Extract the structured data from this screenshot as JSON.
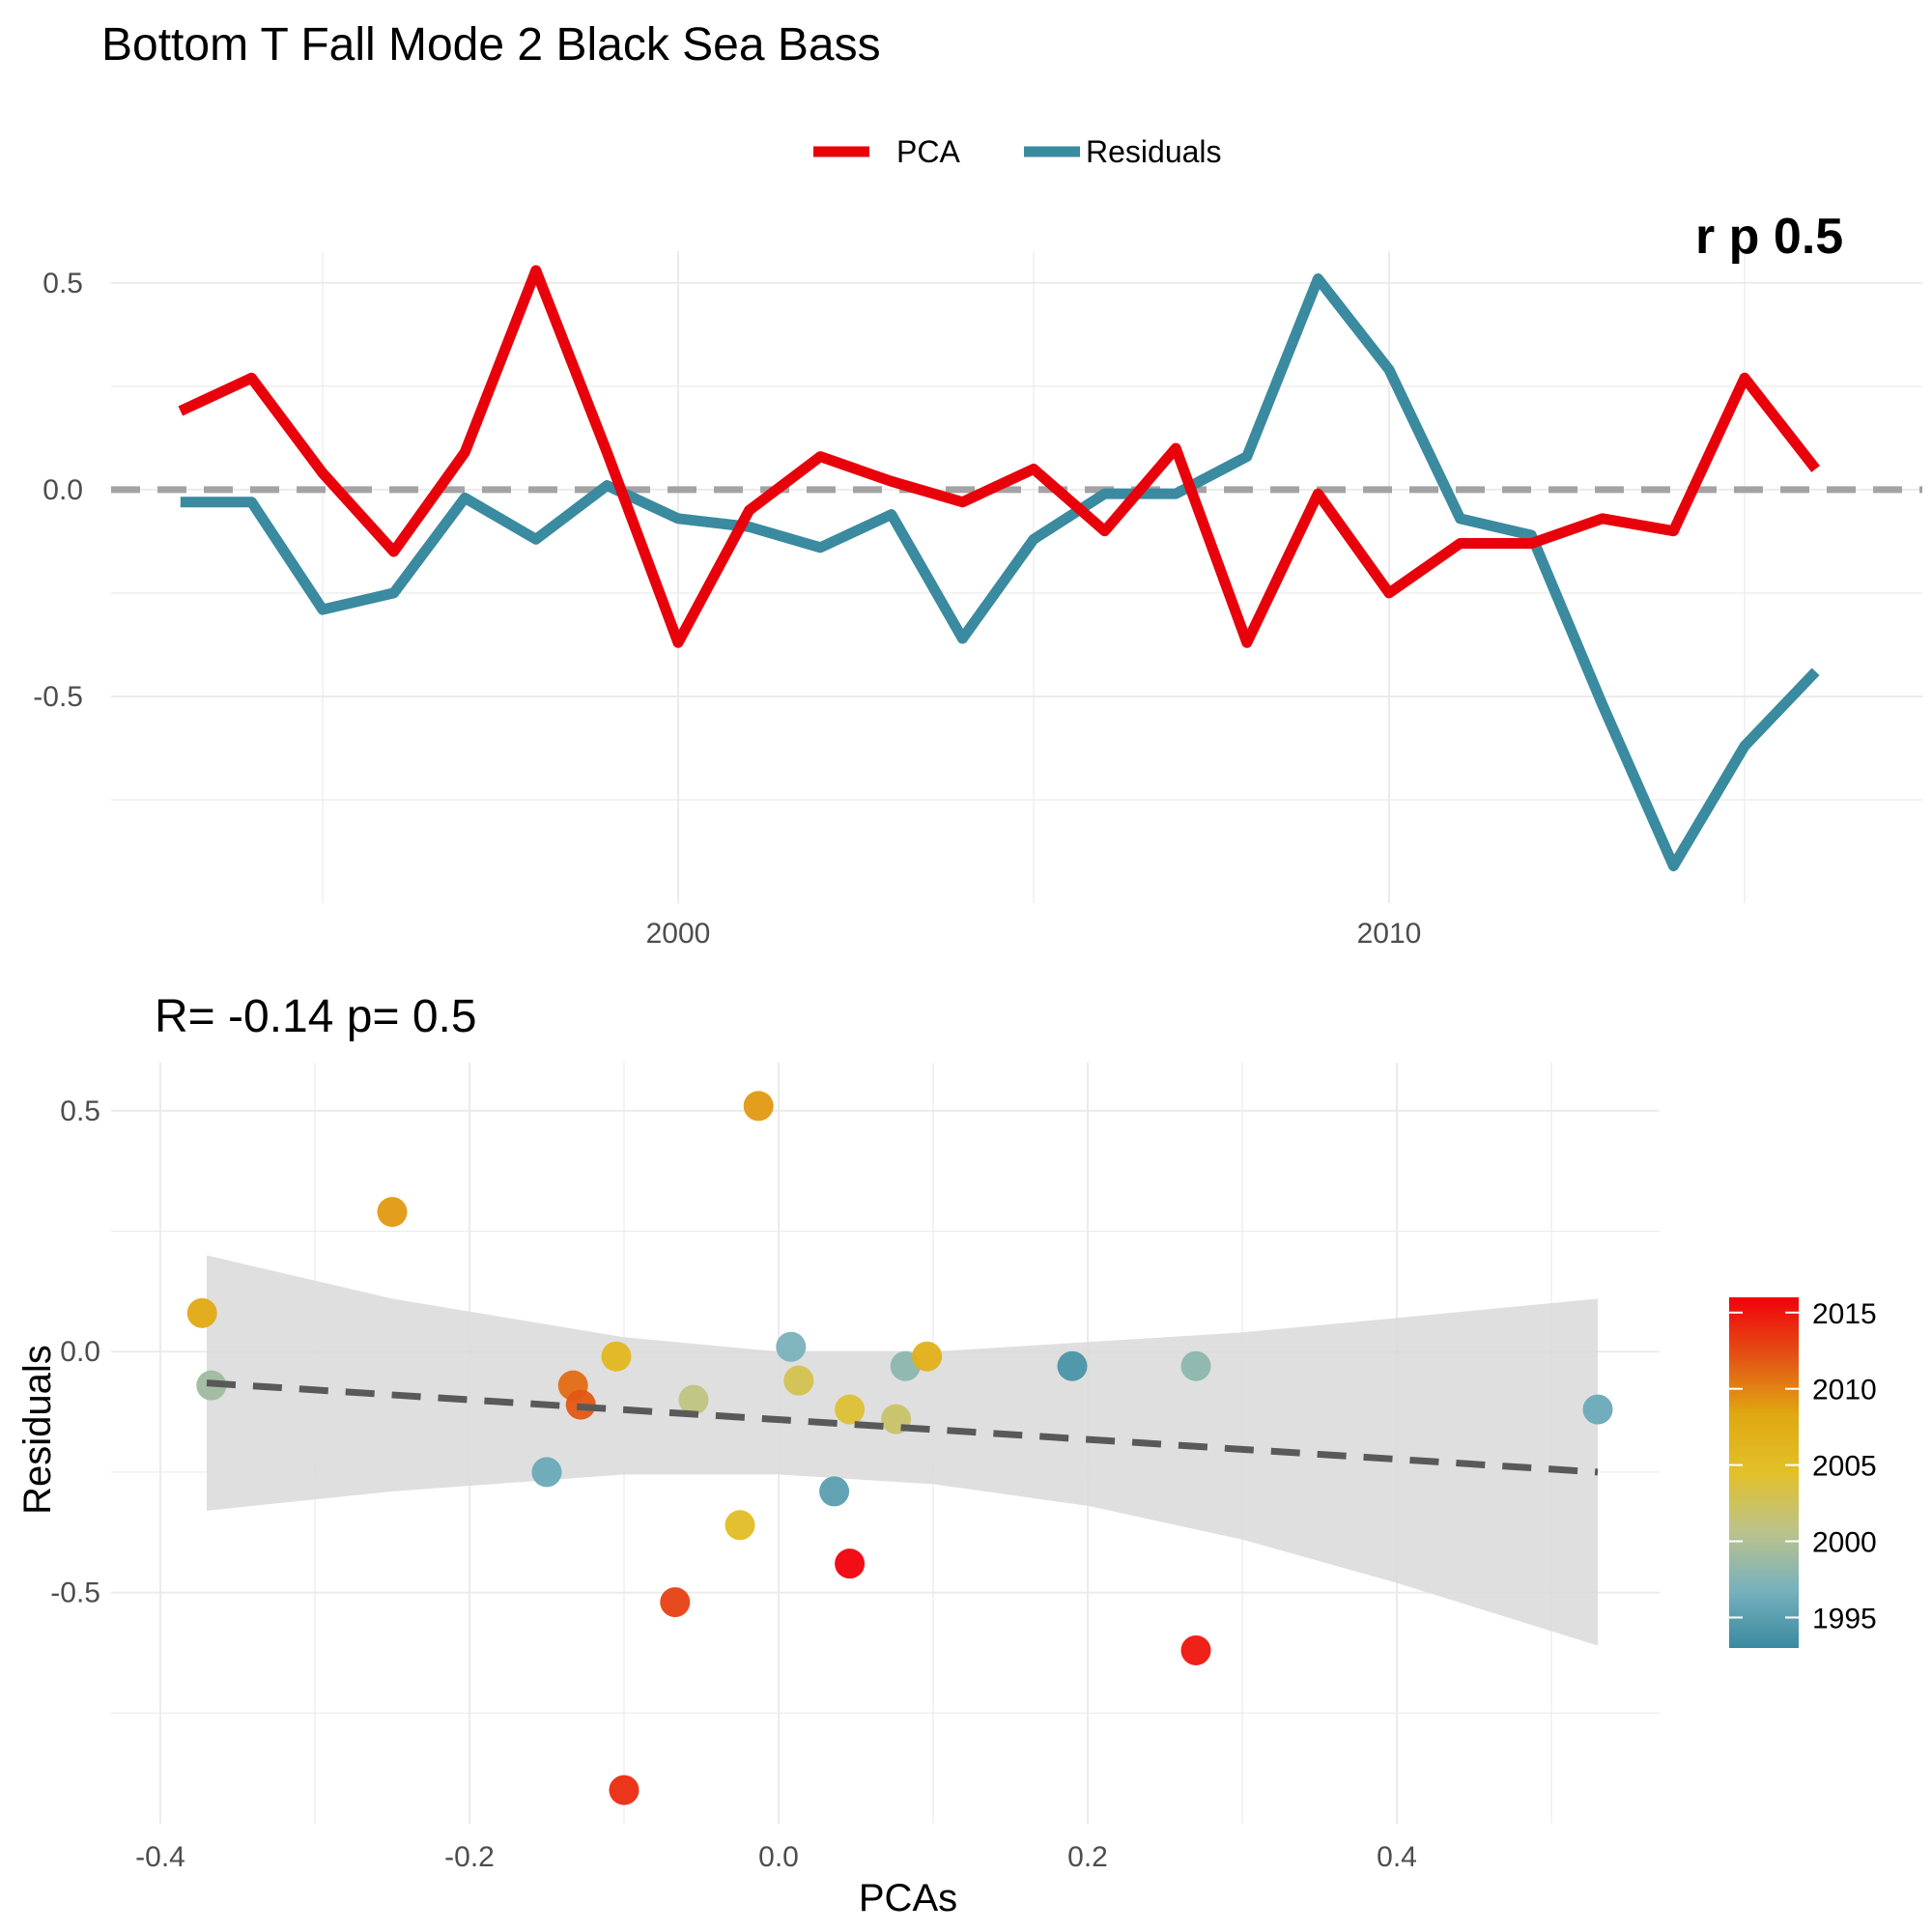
{
  "title": "Bottom T Fall Mode 2 Black Sea Bass",
  "colors": {
    "pca": "#e8000b",
    "residuals": "#3a8aa0",
    "zero_line": "#a3a3a3",
    "fit_line": "#595959",
    "ribbon": "#d9d9d9"
  },
  "chart_data": [
    {
      "type": "line",
      "legend": {
        "position": "top",
        "entries": [
          "PCA",
          "Residuals"
        ]
      },
      "xticks": [
        2000,
        2010
      ],
      "yticks": [
        -0.5,
        0.0,
        0.5
      ],
      "ytick_labels": [
        "-0.5",
        "0.0",
        "0.5"
      ],
      "xlim": [
        1992.5,
        2017.5
      ],
      "ylim": [
        -1.0,
        0.6
      ],
      "hline": 0,
      "x": [
        1993,
        1994,
        1995,
        1996,
        1997,
        1998,
        1999,
        2000,
        2001,
        2002,
        2003,
        2004,
        2005,
        2006,
        2007,
        2008,
        2009,
        2010,
        2011,
        2012,
        2013,
        2014,
        2015,
        2016
      ],
      "series": [
        {
          "name": "PCA",
          "values": [
            0.19,
            0.27,
            0.04,
            -0.15,
            0.09,
            0.53,
            0.09,
            -0.37,
            -0.05,
            0.08,
            0.02,
            -0.03,
            0.05,
            -0.1,
            0.1,
            -0.37,
            -0.01,
            -0.25,
            -0.13,
            -0.13,
            -0.07,
            -0.1,
            0.27,
            0.05
          ]
        },
        {
          "name": "Residuals",
          "values": [
            -0.03,
            -0.03,
            -0.29,
            -0.25,
            -0.02,
            -0.12,
            0.01,
            -0.07,
            -0.09,
            -0.14,
            -0.06,
            -0.36,
            -0.12,
            -0.01,
            -0.01,
            0.08,
            0.51,
            0.29,
            -0.07,
            -0.11,
            -0.52,
            -0.91,
            -0.62,
            -0.44
          ]
        }
      ],
      "clipped_label": "r p 0.5"
    },
    {
      "type": "scatter",
      "subtitle": "R= -0.14  p= 0.5",
      "xlabel": "PCAs",
      "ylabel": "Residuals",
      "xticks": [
        -0.4,
        -0.2,
        0.0,
        0.2,
        0.4
      ],
      "xtick_labels": [
        "-0.4",
        "-0.2",
        "0.0",
        "0.2",
        "0.4"
      ],
      "yticks": [
        -0.5,
        0.0,
        0.5
      ],
      "ytick_labels": [
        "-0.5",
        "0.0",
        "0.5"
      ],
      "xlim": [
        -0.41,
        0.57
      ],
      "ylim": [
        -0.98,
        0.6
      ],
      "fit": {
        "x": [
          -0.37,
          0.53
        ],
        "y": [
          -0.065,
          -0.25
        ]
      },
      "ribbon": {
        "x": [
          -0.37,
          -0.25,
          -0.1,
          0.0,
          0.1,
          0.2,
          0.3,
          0.4,
          0.53
        ],
        "upper": [
          0.2,
          0.11,
          0.03,
          0.0,
          0.0,
          0.02,
          0.04,
          0.07,
          0.11
        ],
        "lower": [
          -0.33,
          -0.29,
          -0.255,
          -0.255,
          -0.275,
          -0.32,
          -0.39,
          -0.48,
          -0.61
        ]
      },
      "points": [
        {
          "x": -0.373,
          "y": 0.08,
          "year": 2008
        },
        {
          "x": -0.367,
          "y": -0.07,
          "year": 1999
        },
        {
          "x": -0.25,
          "y": 0.29,
          "year": 2009
        },
        {
          "x": -0.15,
          "y": -0.25,
          "year": 1996
        },
        {
          "x": -0.133,
          "y": -0.07,
          "year": 2011
        },
        {
          "x": -0.128,
          "y": -0.11,
          "year": 2012
        },
        {
          "x": -0.105,
          "y": -0.01,
          "year": 2006
        },
        {
          "x": -0.1,
          "y": -0.91,
          "year": 2014
        },
        {
          "x": -0.067,
          "y": -0.52,
          "year": 2013
        },
        {
          "x": -0.055,
          "y": -0.1,
          "year": 2001
        },
        {
          "x": -0.025,
          "y": -0.36,
          "year": 2005
        },
        {
          "x": -0.013,
          "y": 0.51,
          "year": 2009
        },
        {
          "x": 0.008,
          "y": 0.01,
          "year": 1997
        },
        {
          "x": 0.013,
          "y": -0.06,
          "year": 2003
        },
        {
          "x": 0.036,
          "y": -0.29,
          "year": 1995
        },
        {
          "x": 0.046,
          "y": -0.44,
          "year": 2016
        },
        {
          "x": 0.046,
          "y": -0.12,
          "year": 2004
        },
        {
          "x": 0.076,
          "y": -0.14,
          "year": 2002
        },
        {
          "x": 0.082,
          "y": -0.03,
          "year": 1998
        },
        {
          "x": 0.096,
          "y": -0.01,
          "year": 2007
        },
        {
          "x": 0.19,
          "y": -0.03,
          "year": 1994
        },
        {
          "x": 0.27,
          "y": -0.03,
          "year": 1998
        },
        {
          "x": 0.27,
          "y": -0.62,
          "year": 2015
        },
        {
          "x": 0.53,
          "y": -0.12,
          "year": 1996
        }
      ],
      "colorbar": {
        "ticks": [
          2015,
          2010,
          2005,
          2000,
          1995
        ],
        "range": [
          1993,
          2016
        ],
        "stops": [
          "#3a8aa0",
          "#77b1bd",
          "#bcc38a",
          "#e2c028",
          "#e0a812",
          "#e35214",
          "#f2000b"
        ]
      }
    }
  ]
}
